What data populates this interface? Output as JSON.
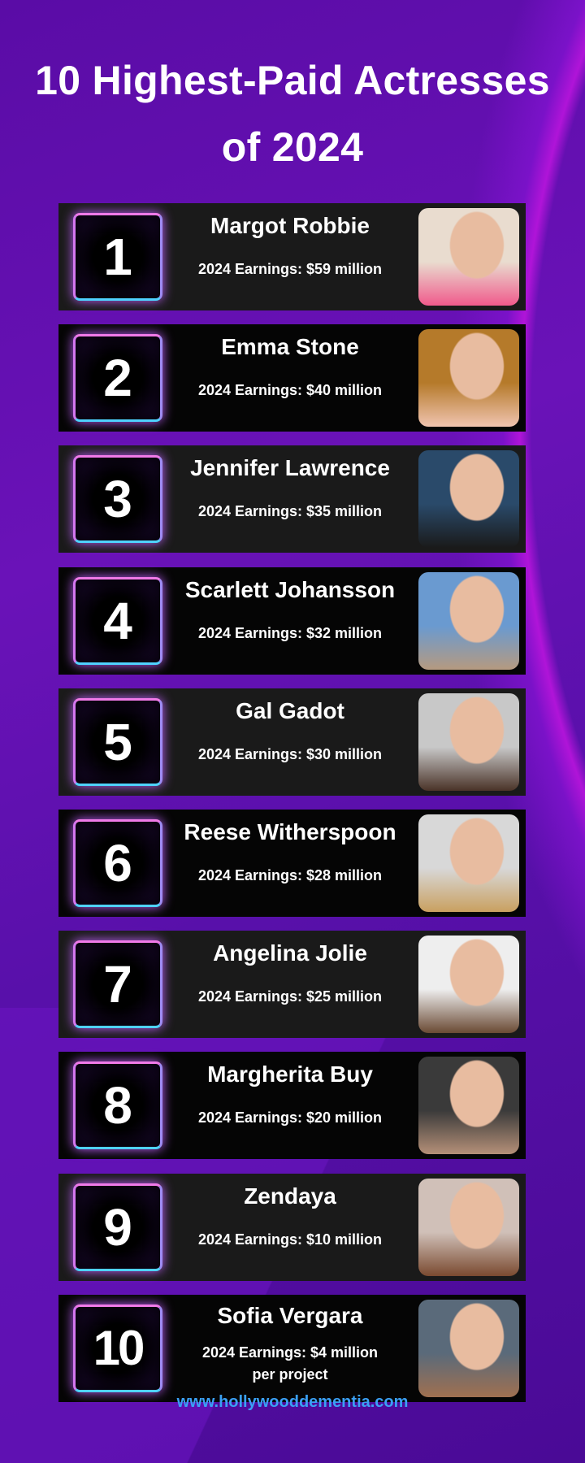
{
  "title_line1": "10 Highest-Paid Actresses",
  "title_line2": "of 2024",
  "items": [
    {
      "rank": "1",
      "name": "Margot Robbie",
      "earnings": "2024 Earnings: $59 million",
      "photo": [
        "#e9dccf",
        "#f05a8c"
      ]
    },
    {
      "rank": "2",
      "name": "Emma Stone",
      "earnings": "2024 Earnings: $40 million",
      "photo": [
        "#b57a2a",
        "#f0c4b0"
      ]
    },
    {
      "rank": "3",
      "name": "Jennifer Lawrence",
      "earnings": "2024 Earnings: $35 million",
      "photo": [
        "#2a4a6a",
        "#1a1a1a"
      ]
    },
    {
      "rank": "4",
      "name": "Scarlett Johansson",
      "earnings": "2024 Earnings: $32 million",
      "photo": [
        "#6a9ad0",
        "#b59a80"
      ]
    },
    {
      "rank": "5",
      "name": "Gal Gadot",
      "earnings": "2024 Earnings: $30 million",
      "photo": [
        "#c8c8c8",
        "#4a3328"
      ]
    },
    {
      "rank": "6",
      "name": "Reese Witherspoon",
      "earnings": "2024 Earnings: $28 million",
      "photo": [
        "#d8d8d8",
        "#c9a060"
      ]
    },
    {
      "rank": "7",
      "name": "Angelina Jolie",
      "earnings": "2024 Earnings: $25 million",
      "photo": [
        "#eeeeee",
        "#6a4a34"
      ]
    },
    {
      "rank": "8",
      "name": "Margherita Buy",
      "earnings": "2024 Earnings: $20 million",
      "photo": [
        "#3a3a3a",
        "#b59078"
      ]
    },
    {
      "rank": "9",
      "name": "Zendaya",
      "earnings": "2024 Earnings: $10 million",
      "photo": [
        "#d0c0b8",
        "#7a4a30"
      ]
    },
    {
      "rank": "10",
      "name": "Sofia Vergara",
      "earnings": "2024 Earnings: $4 million",
      "earnings2": "per project",
      "photo": [
        "#5a6a7a",
        "#a07050"
      ]
    }
  ],
  "footer": "www.hollywooddementia.com"
}
